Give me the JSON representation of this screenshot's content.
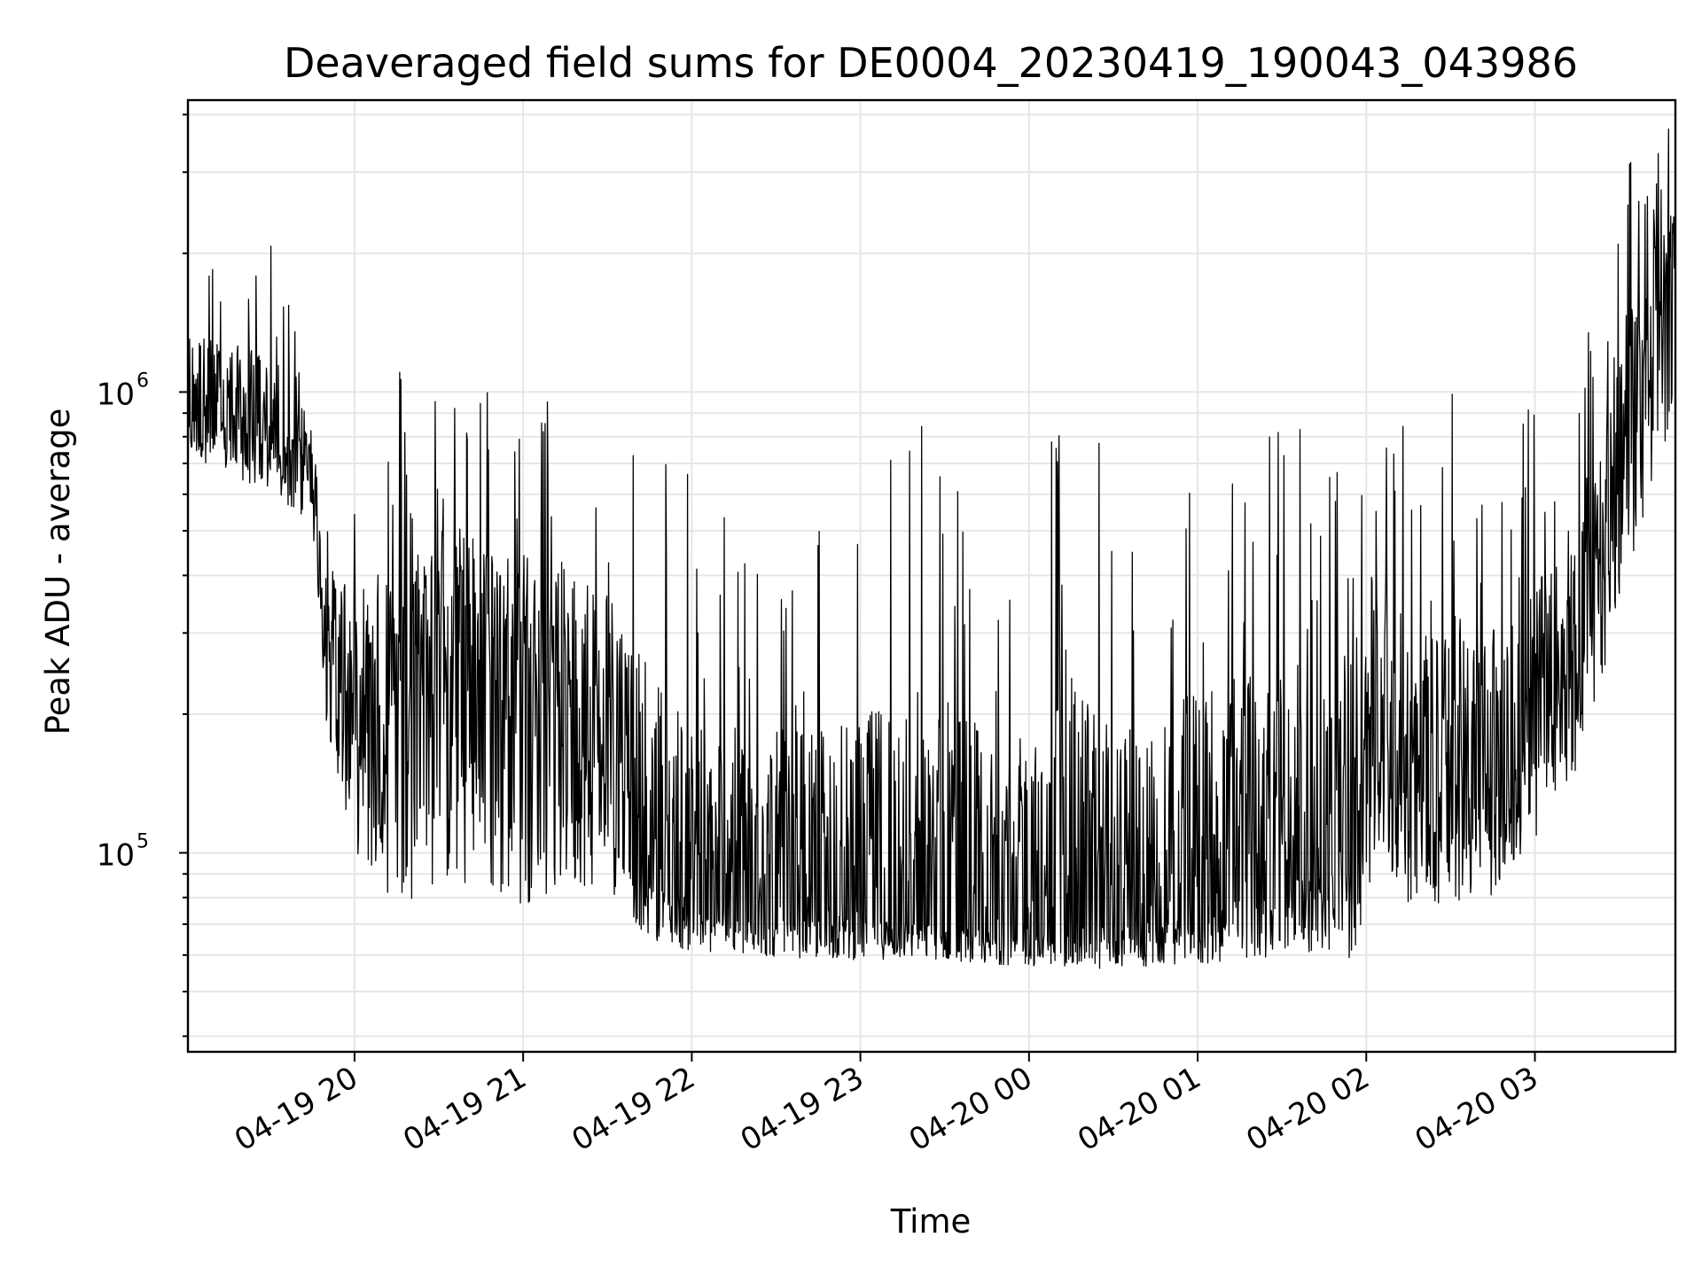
{
  "chart_data": {
    "type": "line",
    "title": "Deaveraged field sums for DE0004_20230419_190043_043986",
    "xlabel": "Time",
    "ylabel": "Peak ADU - average",
    "yscale": "log",
    "grid": true,
    "legend": "none",
    "line_color": "#000000",
    "grid_color": "#e6e6e6",
    "x_ticks": [
      "04-19 20",
      "04-19 21",
      "04-19 22",
      "04-19 23",
      "04-20 00",
      "04-20 01",
      "04-20 02",
      "04-20 03"
    ],
    "x_tick_datetimes": [
      "2023-04-19 20:00",
      "2023-04-19 21:00",
      "2023-04-19 22:00",
      "2023-04-19 23:00",
      "2023-04-20 00:00",
      "2023-04-20 01:00",
      "2023-04-20 02:00",
      "2023-04-20 03:00"
    ],
    "xlim": [
      "2023-04-19 19:00:43",
      "2023-04-20 03:50:00"
    ],
    "y_ticks": [
      {
        "base": "10",
        "exp": "5",
        "value": 100000
      },
      {
        "base": "10",
        "exp": "6",
        "value": 1000000
      }
    ],
    "ylim": [
      37000,
      4300000
    ],
    "series": [
      {
        "style": "envelope",
        "x": [
          "2023-04-19 19:00:43",
          "2023-04-19 19:15",
          "2023-04-19 19:30",
          "2023-04-19 19:45",
          "2023-04-19 19:50",
          "2023-04-19 20:00",
          "2023-04-19 20:15",
          "2023-04-19 20:30",
          "2023-04-19 20:45",
          "2023-04-19 21:00",
          "2023-04-19 21:15",
          "2023-04-19 21:30",
          "2023-04-19 21:45",
          "2023-04-19 22:00",
          "2023-04-19 22:15",
          "2023-04-19 22:30",
          "2023-04-19 22:45",
          "2023-04-19 23:00",
          "2023-04-19 23:15",
          "2023-04-19 23:30",
          "2023-04-19 23:45",
          "2023-04-20 00:00",
          "2023-04-20 00:15",
          "2023-04-20 00:30",
          "2023-04-20 00:45",
          "2023-04-20 01:00",
          "2023-04-20 01:15",
          "2023-04-20 01:30",
          "2023-04-20 01:45",
          "2023-04-20 01:55",
          "2023-04-20 02:05",
          "2023-04-20 02:15",
          "2023-04-20 02:30",
          "2023-04-20 02:45",
          "2023-04-20 03:00",
          "2023-04-20 03:15",
          "2023-04-20 03:30",
          "2023-04-20 03:45",
          "2023-04-20 03:50"
        ],
        "low": [
          700000,
          620000,
          560000,
          480000,
          170000,
          85000,
          62000,
          62000,
          58000,
          58000,
          65000,
          70000,
          60000,
          58000,
          57000,
          57000,
          56000,
          55000,
          56000,
          56000,
          55000,
          55000,
          54000,
          54000,
          54000,
          53000,
          54000,
          55000,
          55000,
          52000,
          75000,
          70000,
          68000,
          72000,
          95000,
          130000,
          280000,
          550000,
          900000
        ],
        "typical": [
          900000,
          850000,
          800000,
          650000,
          300000,
          200000,
          180000,
          300000,
          260000,
          240000,
          220000,
          180000,
          85000,
          75000,
          72000,
          70000,
          72000,
          75000,
          72000,
          70000,
          68000,
          65000,
          66000,
          65000,
          68000,
          75000,
          80000,
          85000,
          90000,
          95000,
          250000,
          120000,
          125000,
          130000,
          170000,
          250000,
          700000,
          1500000,
          2000000
        ],
        "high": [
          2300000,
          2100000,
          2100000,
          1200000,
          620000,
          920000,
          1200000,
          1100000,
          1050000,
          1050000,
          950000,
          1000000,
          920000,
          650000,
          600000,
          600000,
          620000,
          620000,
          950000,
          950000,
          600000,
          600000,
          1200000,
          700000,
          600000,
          950000,
          980000,
          950000,
          980000,
          1050000,
          1000000,
          900000,
          1100000,
          950000,
          1050000,
          1000000,
          3000000,
          3700000,
          3900000
        ]
      }
    ]
  }
}
